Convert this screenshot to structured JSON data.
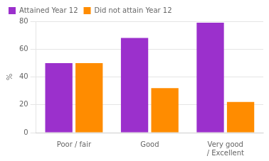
{
  "chart_data": {
    "type": "bar",
    "categories": [
      "Poor / fair",
      "Good",
      "Very good\n/ Excellent"
    ],
    "series": [
      {
        "name": "Attained Year 12",
        "color": "#9B30CC",
        "values": [
          50,
          68,
          79
        ]
      },
      {
        "name": "Did not attain Year 12",
        "color": "#FF8C00",
        "values": [
          50,
          32,
          22
        ]
      }
    ],
    "ylabel": "%",
    "ylim": [
      0,
      80
    ],
    "yticks": [
      0,
      20,
      40,
      60,
      80
    ],
    "grid": true,
    "legend": "upper-left"
  }
}
